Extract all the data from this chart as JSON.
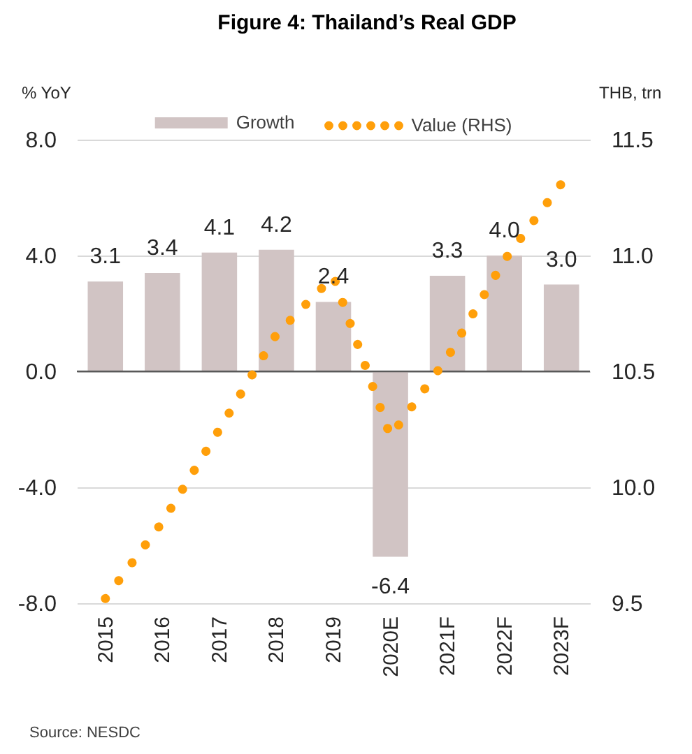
{
  "chart_data": {
    "type": "bar",
    "title": "Figure 4: Thailand’s Real GDP",
    "ylabel": "% YoY",
    "y2label": "THB, trn",
    "categories": [
      "2015",
      "2016",
      "2017",
      "2018",
      "2019",
      "2020E",
      "2021F",
      "2022F",
      "2023F"
    ],
    "series": [
      {
        "name": "Growth",
        "color": "#d1c4c4",
        "values": [
          3.1,
          3.4,
          4.1,
          4.2,
          2.4,
          -6.4,
          3.3,
          4.0,
          3.0
        ],
        "value_labels": [
          "3.1",
          "3.4",
          "4.1",
          "4.2",
          "2.4",
          "-6.4",
          "3.3",
          "4.0",
          "3.0"
        ]
      },
      {
        "name": "Value (RHS)",
        "type": "line",
        "axis": "y2",
        "color": "#ff9f0a",
        "line_style": "dotted",
        "marker": "none",
        "values": [
          9.52,
          9.85,
          10.25,
          10.66,
          10.91,
          10.22,
          10.56,
          10.98,
          11.31
        ]
      }
    ],
    "ylim": [
      -8,
      8
    ],
    "yticks": [
      {
        "value": -8,
        "label": "-8.0"
      },
      {
        "value": -4,
        "label": "-4.0"
      },
      {
        "value": 0,
        "label": "0.0"
      },
      {
        "value": 4,
        "label": "4.0"
      },
      {
        "value": 8,
        "label": "8.0"
      }
    ],
    "y2lim": [
      9.5,
      11.5
    ],
    "y2ticks": [
      9.5,
      {
        "value": 10,
        "label": "10.0"
      },
      10.5,
      {
        "value": 11,
        "label": "11.0"
      },
      11.5
    ],
    "ref_lines": [
      {
        "axis": "y",
        "value": 0,
        "color": "#595959"
      }
    ],
    "grid": "y",
    "legend": "top",
    "annotations": [
      "Source: NESDC"
    ]
  }
}
